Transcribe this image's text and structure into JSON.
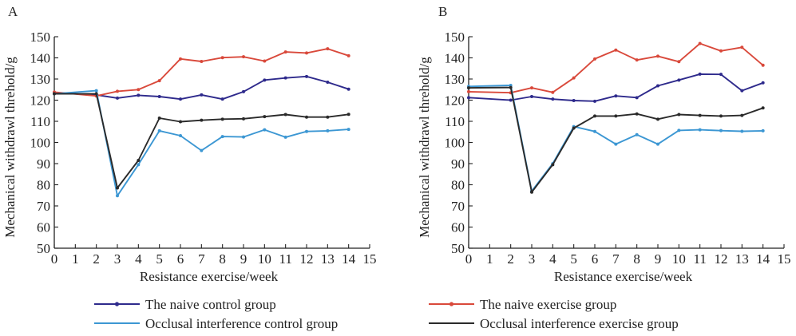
{
  "chart_data": [
    {
      "type": "line",
      "panel_label": "A",
      "xlabel": "Resistance exercise/week",
      "ylabel": "Mechanical withdrawl threhold/g",
      "xlim": [
        0,
        15
      ],
      "ylim": [
        50,
        150
      ],
      "xticks": [
        "0",
        "1",
        "2",
        "3",
        "4",
        "5",
        "6",
        "7",
        "8",
        "9",
        "10",
        "11",
        "12",
        "13",
        "14",
        "15"
      ],
      "yticks": [
        "50",
        "60",
        "70",
        "80",
        "90",
        "100",
        "110",
        "120",
        "130",
        "140",
        "150"
      ],
      "series": [
        {
          "name": "The naive control group",
          "color": "#2e2a8c",
          "x": [
            0,
            2,
            3,
            4,
            5,
            6,
            7,
            8,
            9,
            10,
            11,
            12,
            13,
            14
          ],
          "y": [
            123.5,
            122.5,
            121.0,
            122.3,
            121.7,
            120.5,
            122.5,
            120.5,
            124.0,
            129.5,
            130.5,
            131.2,
            128.5,
            125.2
          ]
        },
        {
          "name": "The naive exercise group",
          "color": "#d9493b",
          "x": [
            0,
            2,
            3,
            4,
            5,
            6,
            7,
            8,
            9,
            10,
            11,
            12,
            13,
            14
          ],
          "y": [
            123.8,
            122.0,
            124.2,
            125.0,
            129.2,
            139.5,
            138.3,
            140.1,
            140.5,
            138.5,
            142.8,
            142.3,
            144.3,
            141.0
          ]
        },
        {
          "name": "Occlusal interference control group",
          "color": "#3c97d3",
          "x": [
            0,
            2,
            3,
            4,
            5,
            6,
            7,
            8,
            9,
            10,
            11,
            12,
            13,
            14
          ],
          "y": [
            123.0,
            124.5,
            74.8,
            89.5,
            105.5,
            103.2,
            96.2,
            102.8,
            102.6,
            106.0,
            102.5,
            105.2,
            105.5,
            106.2
          ]
        },
        {
          "name": "Occlusal interference exercise group",
          "color": "#2a2a2a",
          "x": [
            0,
            2,
            3,
            4,
            5,
            6,
            7,
            8,
            9,
            10,
            11,
            12,
            13,
            14
          ],
          "y": [
            123.0,
            123.0,
            78.5,
            91.5,
            111.5,
            109.8,
            110.5,
            111.0,
            111.2,
            112.2,
            113.2,
            112.0,
            112.0,
            113.3
          ]
        }
      ]
    },
    {
      "type": "line",
      "panel_label": "B",
      "xlabel": "Resistance exercise/week",
      "ylabel": "Mechanical withdrawl threhold/g",
      "xlim": [
        0,
        15
      ],
      "ylim": [
        50,
        150
      ],
      "xticks": [
        "0",
        "1",
        "2",
        "3",
        "4",
        "5",
        "6",
        "7",
        "8",
        "9",
        "10",
        "11",
        "12",
        "13",
        "14",
        "15"
      ],
      "yticks": [
        "50",
        "60",
        "70",
        "80",
        "90",
        "100",
        "110",
        "120",
        "130",
        "140",
        "150"
      ],
      "series": [
        {
          "name": "The naive control group",
          "color": "#2e2a8c",
          "x": [
            0,
            2,
            3,
            4,
            5,
            6,
            7,
            8,
            9,
            10,
            11,
            12,
            13,
            14
          ],
          "y": [
            121.2,
            120.0,
            121.7,
            120.5,
            119.8,
            119.5,
            122.0,
            121.2,
            126.8,
            129.5,
            132.3,
            132.2,
            124.5,
            128.2
          ]
        },
        {
          "name": "The naive exercise group",
          "color": "#d9493b",
          "x": [
            0,
            2,
            3,
            4,
            5,
            6,
            7,
            8,
            9,
            10,
            11,
            12,
            13,
            14
          ],
          "y": [
            124.0,
            123.5,
            125.8,
            123.7,
            130.5,
            139.5,
            143.7,
            139.0,
            140.8,
            138.2,
            146.8,
            143.3,
            145.0,
            136.5
          ]
        },
        {
          "name": "Occlusal interference control group",
          "color": "#3c97d3",
          "x": [
            0,
            2,
            3,
            4,
            5,
            6,
            7,
            8,
            9,
            10,
            11,
            12,
            13,
            14
          ],
          "y": [
            126.5,
            127.0,
            77.0,
            90.0,
            107.5,
            105.2,
            99.2,
            103.7,
            99.2,
            105.7,
            106.0,
            105.6,
            105.3,
            105.5
          ]
        },
        {
          "name": "Occlusal interference exercise group",
          "color": "#2a2a2a",
          "x": [
            0,
            2,
            3,
            4,
            5,
            6,
            7,
            8,
            9,
            10,
            11,
            12,
            13,
            14
          ],
          "y": [
            125.8,
            126.0,
            76.5,
            89.5,
            106.8,
            112.5,
            112.5,
            113.5,
            111.0,
            113.2,
            112.8,
            112.5,
            112.8,
            116.3
          ]
        }
      ]
    }
  ],
  "legend": [
    {
      "label": "The naive control group",
      "color": "#2e2a8c",
      "marker": true
    },
    {
      "label": "The naive exercise group",
      "color": "#d9493b",
      "marker": true
    },
    {
      "label": "Occlusal interference control group",
      "color": "#3c97d3",
      "marker": false
    },
    {
      "label": "Occlusal interference exercise group",
      "color": "#2a2a2a",
      "marker": false
    }
  ]
}
